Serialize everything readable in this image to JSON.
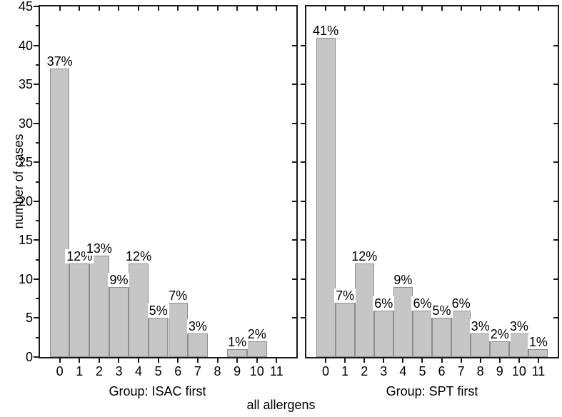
{
  "figure": {
    "ylabel": "number of cases",
    "xlabel": "all allergens",
    "y_axis": {
      "min": 0,
      "max": 45,
      "major_step": 5,
      "minor_step": 2.5,
      "tick_labels": [
        "45",
        "40",
        "35",
        "30",
        "25",
        "20",
        "15",
        "10",
        "5",
        "0"
      ]
    },
    "colors": {
      "bar_fill": "#c6c6c6",
      "bar_border": "#8e8e8e",
      "axis": "#1a1a1a",
      "text": "#000000",
      "label_background": "#ffffff",
      "background": "#ffffff"
    }
  },
  "chart_data": [
    {
      "type": "bar",
      "title": "Group: ISAC first",
      "categories": [
        "0",
        "1",
        "2",
        "3",
        "4",
        "5",
        "6",
        "7",
        "8",
        "9",
        "10",
        "11"
      ],
      "values": [
        37,
        12,
        13,
        9,
        12,
        5,
        7,
        3,
        0,
        1,
        2,
        0
      ],
      "bar_labels": [
        "37%",
        "12%",
        "13%",
        "9%",
        "12%",
        "5%",
        "7%",
        "3%",
        "",
        "1%",
        "2%",
        ""
      ],
      "ylabel": "number of cases",
      "xlabel": "Group: ISAC first",
      "ylim": [
        0,
        45
      ],
      "grid": false,
      "legend": "none"
    },
    {
      "type": "bar",
      "title": "Group: SPT first",
      "categories": [
        "0",
        "1",
        "2",
        "3",
        "4",
        "5",
        "6",
        "7",
        "8",
        "9",
        "10",
        "11"
      ],
      "values": [
        41,
        7,
        12,
        6,
        9,
        6,
        5,
        6,
        3,
        2,
        3,
        1
      ],
      "bar_labels": [
        "41%",
        "7%",
        "12%",
        "6%",
        "9%",
        "6%",
        "5%",
        "6%",
        "3%",
        "2%",
        "3%",
        "1%"
      ],
      "ylabel": "number of cases",
      "xlabel": "Group: SPT first",
      "ylim": [
        0,
        45
      ],
      "grid": false,
      "legend": "none"
    }
  ]
}
